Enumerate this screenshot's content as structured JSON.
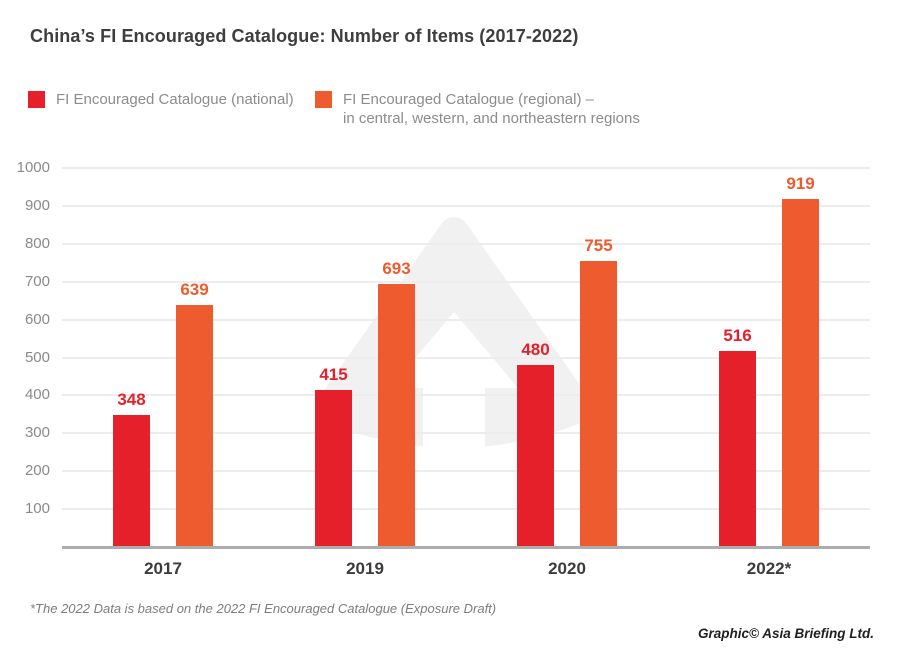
{
  "title": "China’s FI Encouraged Catalogue: Number of Items (2017-2022)",
  "legend": {
    "national": {
      "label": "FI Encouraged Catalogue (national)"
    },
    "regional": {
      "label_line1": "FI Encouraged Catalogue (regional) –",
      "label_line2": "in central, western, and northeastern regions"
    }
  },
  "colors": {
    "national_red": "#e5202b",
    "regional_orange": "#ee5b2e",
    "title_text": "#3e3e3e",
    "axis_text": "#8a8a8a",
    "gridline": "#ededed",
    "baseline": "#adadad",
    "watermark_gray": "#f1f1f1"
  },
  "chart_data": {
    "type": "bar",
    "categories": [
      "2017",
      "2019",
      "2020",
      "2022*"
    ],
    "series": [
      {
        "name": "FI Encouraged Catalogue (national)",
        "color": "#e5202b",
        "values": [
          348,
          415,
          480,
          516
        ]
      },
      {
        "name": "FI Encouraged Catalogue (regional) – in central, western, and northeastern regions",
        "color": "#ee5b2e",
        "values": [
          639,
          693,
          755,
          919
        ]
      }
    ],
    "title": "China’s FI Encouraged Catalogue: Number of Items (2017-2022)",
    "xlabel": "",
    "ylabel": "",
    "ylim": [
      0,
      1000
    ],
    "yticks": [
      100,
      200,
      300,
      400,
      500,
      600,
      700,
      800,
      900,
      1000
    ],
    "grid": true,
    "legend_position": "top-left",
    "value_labels": true
  },
  "watermark": {
    "name": "asia-briefing-arrow-logo"
  },
  "footnote": "*The 2022 Data is based on the 2022 FI Encouraged Catalogue (Exposure Draft)",
  "credit": "Graphic© Asia Briefing Ltd."
}
